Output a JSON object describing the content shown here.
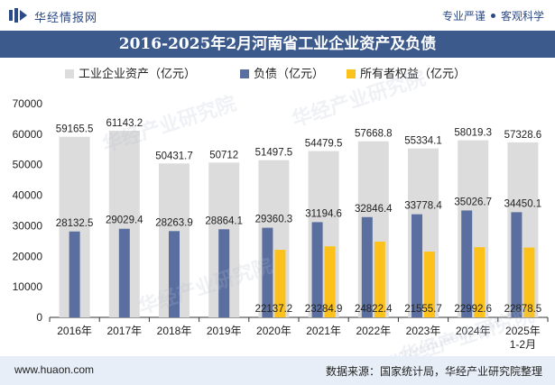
{
  "header": {
    "brand": "华经情报网",
    "slogan_left": "专业严谨",
    "slogan_right": "客观科学"
  },
  "footer": {
    "website": "www.huaon.com",
    "source": "数据来源：国家统计局，华经产业研究院整理"
  },
  "watermarks": [
    "华经产业研究院",
    "www.huaon.com"
  ],
  "colors": {
    "assets": "#dcdcdc",
    "liabilities": "#5a6f9f",
    "equity": "#fcc21b",
    "title_bar": "#3d5a8c"
  },
  "chart_data": {
    "type": "bar",
    "title": "2016-2025年2月河南省工业企业资产及负债",
    "categories": [
      "2016年",
      "2017年",
      "2018年",
      "2019年",
      "2020年",
      "2021年",
      "2022年",
      "2023年",
      "2024年",
      "2025年\n1-2月"
    ],
    "series": [
      {
        "name": "工业企业资产（亿元）",
        "values": [
          59165.5,
          61143.2,
          50431.7,
          50712,
          51497.5,
          54479.5,
          57668.8,
          55334.1,
          58019.3,
          57328.6
        ]
      },
      {
        "name": "负债（亿元）",
        "values": [
          28132.5,
          29029.4,
          28263.9,
          28864.1,
          29360.3,
          31194.6,
          32846.4,
          33778.4,
          35026.7,
          34450.1
        ]
      },
      {
        "name": "所有者权益（亿元）",
        "values": [
          null,
          null,
          null,
          null,
          22137.2,
          23284.9,
          24822.4,
          21555.7,
          22992.6,
          22878.5
        ]
      }
    ],
    "value_labels": [
      [
        "59165.5",
        "61143.2",
        "50431.7",
        "50712",
        "51497.5",
        "54479.5",
        "57668.8",
        "55334.1",
        "58019.3",
        "57328.6"
      ],
      [
        "28132.5",
        "29029.4",
        "28263.9",
        "28864.1",
        "29360.3",
        "31194.6",
        "32846.4",
        "33778.4",
        "35026.7",
        "34450.1"
      ],
      [
        "",
        "",
        "",
        "",
        "22137.2",
        "23284.9",
        "24822.4",
        "21555.7",
        "22992.6",
        "22878.5"
      ]
    ],
    "yticks": [
      "0",
      "10000",
      "20000",
      "30000",
      "40000",
      "50000",
      "60000",
      "70000"
    ],
    "ylim": [
      0,
      70000
    ],
    "xlabel": "",
    "ylabel": "",
    "legend_position": "top-center",
    "grid": false
  }
}
